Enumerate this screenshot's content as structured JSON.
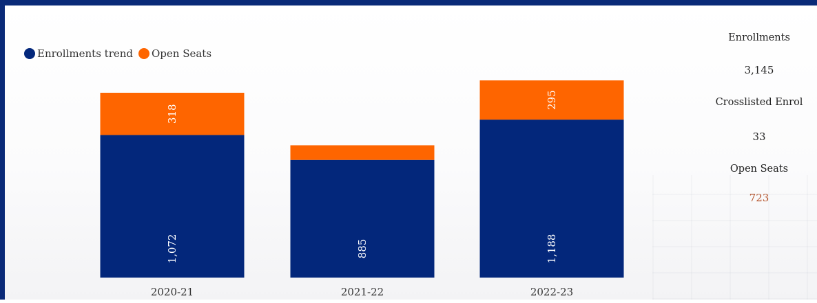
{
  "legend": {
    "enrollments_label": "Enrollments trend",
    "open_seats_label": "Open Seats"
  },
  "colors": {
    "enrollments": "#03277b",
    "open_seats": "#fe6500",
    "frame": "#0a2a78",
    "open_seats_value": "#b5532a"
  },
  "kpis": {
    "enrollments_label": "Enrollments",
    "enrollments_value": "3,145",
    "crosslisted_label": "Crosslisted Enrol",
    "crosslisted_value": "33",
    "open_seats_label": "Open Seats",
    "open_seats_value": "723"
  },
  "chart_data": {
    "type": "bar",
    "stacked": true,
    "categories": [
      "2020-21",
      "2021-22",
      "2022-23"
    ],
    "series": [
      {
        "name": "Enrollments trend",
        "values": [
          1072,
          885,
          1188
        ],
        "labels": [
          "1,072",
          "885",
          "1,188"
        ]
      },
      {
        "name": "Open Seats",
        "values": [
          318,
          110,
          295
        ],
        "labels": [
          "318",
          "",
          "295"
        ]
      }
    ],
    "title": "",
    "xlabel": "",
    "ylabel": "",
    "ylim": [
      0,
      1483
    ],
    "grid": false,
    "legend_position": "top-left"
  }
}
